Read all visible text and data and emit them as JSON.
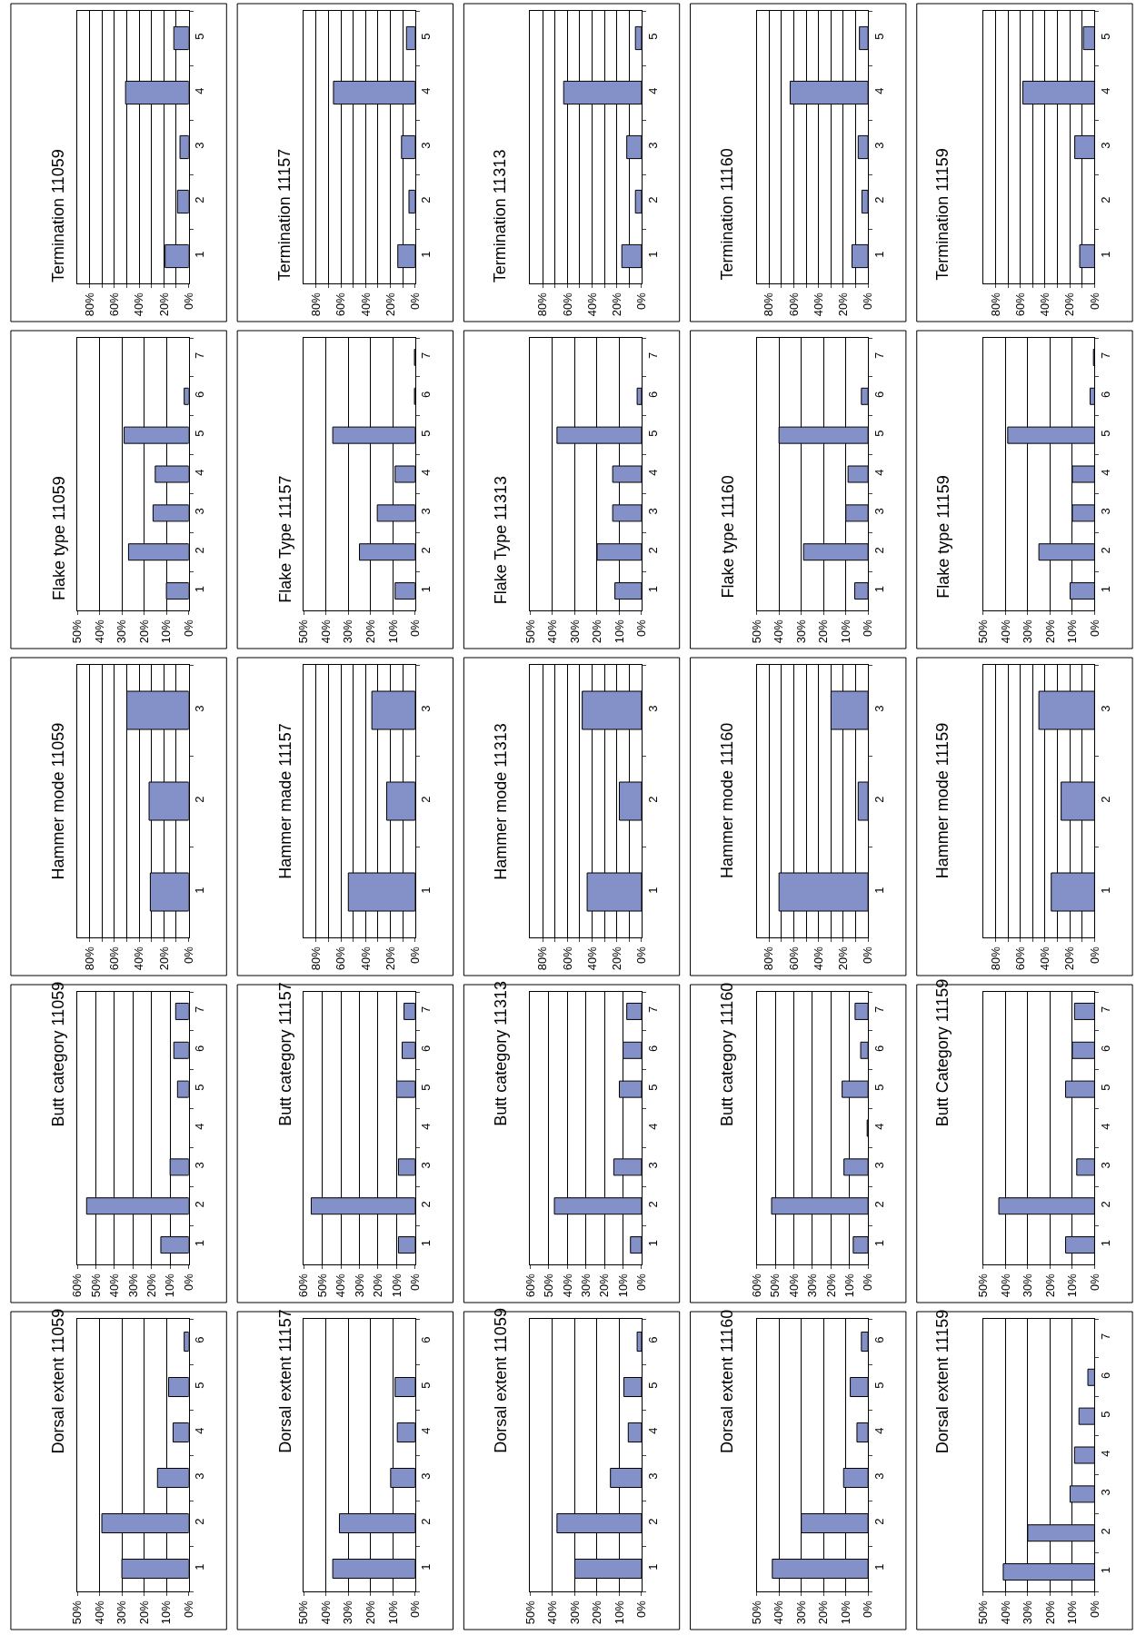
{
  "chart_data": [
    {
      "type": "bar",
      "orientation": "horizontal",
      "title": "Termination 11059",
      "categories": [
        "5",
        "4",
        "3",
        "2",
        "1"
      ],
      "values": [
        12,
        51,
        7,
        9,
        19
      ],
      "color": "#8490c8",
      "xlim": [
        90,
        0
      ],
      "xticks": [
        {
          "value": 0,
          "label": "0%"
        },
        {
          "value": 10,
          "label": null
        },
        {
          "value": 20,
          "label": "20%"
        },
        {
          "value": 30,
          "label": null
        },
        {
          "value": 40,
          "label": "40%"
        },
        {
          "value": 50,
          "label": null
        },
        {
          "value": 60,
          "label": "60%"
        },
        {
          "value": 70,
          "label": null
        },
        {
          "value": 80,
          "label": "80%"
        }
      ],
      "grid": "x"
    },
    {
      "type": "bar",
      "orientation": "horizontal",
      "title": "Termination 11157",
      "categories": [
        "5",
        "4",
        "3",
        "2",
        "1"
      ],
      "values": [
        7,
        66,
        11,
        5,
        14
      ],
      "color": "#8490c8",
      "xlim": [
        90,
        0
      ],
      "xticks": [
        {
          "value": 0,
          "label": "0%"
        },
        {
          "value": 10,
          "label": null
        },
        {
          "value": 20,
          "label": "20%"
        },
        {
          "value": 30,
          "label": null
        },
        {
          "value": 40,
          "label": "40%"
        },
        {
          "value": 50,
          "label": null
        },
        {
          "value": 60,
          "label": "60%"
        },
        {
          "value": 70,
          "label": null
        },
        {
          "value": 80,
          "label": "80%"
        }
      ],
      "grid": "x"
    },
    {
      "type": "bar",
      "orientation": "horizontal",
      "title": "Termination 11313",
      "categories": [
        "5",
        "4",
        "3",
        "2",
        "1"
      ],
      "values": [
        5,
        63,
        12,
        5,
        16
      ],
      "color": "#8490c8",
      "xlim": [
        90,
        0
      ],
      "xticks": [
        {
          "value": 0,
          "label": "0%"
        },
        {
          "value": 10,
          "label": null
        },
        {
          "value": 20,
          "label": "20%"
        },
        {
          "value": 30,
          "label": null
        },
        {
          "value": 40,
          "label": "40%"
        },
        {
          "value": 50,
          "label": null
        },
        {
          "value": 60,
          "label": "60%"
        },
        {
          "value": 70,
          "label": null
        },
        {
          "value": 80,
          "label": "80%"
        }
      ],
      "grid": "x"
    },
    {
      "type": "bar",
      "orientation": "horizontal",
      "title": "Termination 11160",
      "categories": [
        "5",
        "4",
        "3",
        "2",
        "1"
      ],
      "values": [
        7,
        63,
        8,
        5,
        13
      ],
      "color": "#8490c8",
      "xlim": [
        90,
        0
      ],
      "xticks": [
        {
          "value": 0,
          "label": "0%"
        },
        {
          "value": 10,
          "label": null
        },
        {
          "value": 20,
          "label": "20%"
        },
        {
          "value": 30,
          "label": null
        },
        {
          "value": 40,
          "label": "40%"
        },
        {
          "value": 50,
          "label": null
        },
        {
          "value": 60,
          "label": "60%"
        },
        {
          "value": 70,
          "label": null
        },
        {
          "value": 80,
          "label": "80%"
        }
      ],
      "grid": "x"
    },
    {
      "type": "bar",
      "orientation": "horizontal",
      "title": "Termination 11159",
      "categories": [
        "5",
        "4",
        "3",
        "2",
        "1"
      ],
      "values": [
        9,
        58,
        16,
        null,
        12
      ],
      "color": "#8490c8",
      "xlim": [
        90,
        0
      ],
      "xticks": [
        {
          "value": 0,
          "label": "0%"
        },
        {
          "value": 10,
          "label": null
        },
        {
          "value": 20,
          "label": "20%"
        },
        {
          "value": 30,
          "label": null
        },
        {
          "value": 40,
          "label": "40%"
        },
        {
          "value": 50,
          "label": null
        },
        {
          "value": 60,
          "label": "60%"
        },
        {
          "value": 70,
          "label": null
        },
        {
          "value": 80,
          "label": "80%"
        }
      ],
      "grid": "x"
    },
    {
      "type": "bar",
      "orientation": "horizontal",
      "title": "Flake type 11059",
      "categories": [
        "7",
        "6",
        "5",
        "4",
        "3",
        "2",
        "1"
      ],
      "values": [
        0,
        2,
        29,
        15,
        16,
        27,
        10
      ],
      "color": "#8490c8",
      "xlim": [
        50,
        0
      ],
      "xticks": [
        {
          "value": 0,
          "label": "0%"
        },
        {
          "value": 10,
          "label": "10%"
        },
        {
          "value": 20,
          "label": "20%"
        },
        {
          "value": 30,
          "label": "30%"
        },
        {
          "value": 40,
          "label": "40%"
        },
        {
          "value": 50,
          "label": "50%"
        }
      ],
      "grid": "x"
    },
    {
      "type": "bar",
      "orientation": "horizontal",
      "title": "Flake Type 11157",
      "categories": [
        "7",
        "6",
        "5",
        "4",
        "3",
        "2",
        "1"
      ],
      "values": [
        0.3,
        0.3,
        37,
        9,
        17,
        25,
        9
      ],
      "color": "#8490c8",
      "xlim": [
        50,
        0
      ],
      "xticks": [
        {
          "value": 0,
          "label": "0%"
        },
        {
          "value": 10,
          "label": "10%"
        },
        {
          "value": 20,
          "label": "20%"
        },
        {
          "value": 30,
          "label": "30%"
        },
        {
          "value": 40,
          "label": "40%"
        },
        {
          "value": 50,
          "label": "50%"
        }
      ],
      "grid": "x"
    },
    {
      "type": "bar",
      "orientation": "horizontal",
      "title": "Flake Type 11313",
      "categories": [
        "7",
        "6",
        "5",
        "4",
        "3",
        "2",
        "1"
      ],
      "values": [
        0,
        2,
        38,
        13,
        13,
        20,
        12
      ],
      "color": "#8490c8",
      "xlim": [
        50,
        0
      ],
      "xticks": [
        {
          "value": 0,
          "label": "0%"
        },
        {
          "value": 10,
          "label": "10%"
        },
        {
          "value": 20,
          "label": "20%"
        },
        {
          "value": 30,
          "label": "30%"
        },
        {
          "value": 40,
          "label": "40%"
        },
        {
          "value": 50,
          "label": "50%"
        }
      ],
      "grid": "x"
    },
    {
      "type": "bar",
      "orientation": "horizontal",
      "title": "Flake type 11160",
      "categories": [
        "7",
        "6",
        "5",
        "4",
        "3",
        "2",
        "1"
      ],
      "values": [
        0,
        3,
        40,
        9,
        10,
        29,
        6
      ],
      "color": "#8490c8",
      "xlim": [
        50,
        0
      ],
      "xticks": [
        {
          "value": 0,
          "label": "0%"
        },
        {
          "value": 10,
          "label": "10%"
        },
        {
          "value": 20,
          "label": "20%"
        },
        {
          "value": 30,
          "label": "30%"
        },
        {
          "value": 40,
          "label": "40%"
        },
        {
          "value": 50,
          "label": "50%"
        }
      ],
      "grid": "x"
    },
    {
      "type": "bar",
      "orientation": "horizontal",
      "title": "Flake type 11159",
      "categories": [
        "7",
        "6",
        "5",
        "4",
        "3",
        "2",
        "1"
      ],
      "values": [
        0.5,
        2,
        39,
        10,
        10,
        25,
        11
      ],
      "color": "#8490c8",
      "xlim": [
        50,
        0
      ],
      "xticks": [
        {
          "value": 0,
          "label": "0%"
        },
        {
          "value": 10,
          "label": "10%"
        },
        {
          "value": 20,
          "label": "20%"
        },
        {
          "value": 30,
          "label": "30%"
        },
        {
          "value": 40,
          "label": "40%"
        },
        {
          "value": 50,
          "label": "50%"
        }
      ],
      "grid": "x"
    },
    {
      "type": "bar",
      "orientation": "horizontal",
      "title": "Hammer mode 11059",
      "categories": [
        "3",
        "2",
        "1"
      ],
      "values": [
        50,
        32,
        31
      ],
      "color": "#8490c8",
      "xlim": [
        90,
        0
      ],
      "xticks": [
        {
          "value": 0,
          "label": "0%"
        },
        {
          "value": 10,
          "label": null
        },
        {
          "value": 20,
          "label": "20%"
        },
        {
          "value": 30,
          "label": null
        },
        {
          "value": 40,
          "label": "40%"
        },
        {
          "value": 50,
          "label": null
        },
        {
          "value": 60,
          "label": "60%"
        },
        {
          "value": 70,
          "label": null
        },
        {
          "value": 80,
          "label": "80%"
        }
      ],
      "grid": "x"
    },
    {
      "type": "bar",
      "orientation": "horizontal",
      "title": "Hammer made 11157",
      "categories": [
        "3",
        "2",
        "1"
      ],
      "values": [
        35,
        23,
        54
      ],
      "color": "#8490c8",
      "xlim": [
        90,
        0
      ],
      "xticks": [
        {
          "value": 0,
          "label": "0%"
        },
        {
          "value": 10,
          "label": null
        },
        {
          "value": 20,
          "label": "20%"
        },
        {
          "value": 30,
          "label": null
        },
        {
          "value": 40,
          "label": "40%"
        },
        {
          "value": 50,
          "label": null
        },
        {
          "value": 60,
          "label": "60%"
        },
        {
          "value": 70,
          "label": null
        },
        {
          "value": 80,
          "label": "80%"
        }
      ],
      "grid": "x"
    },
    {
      "type": "bar",
      "orientation": "horizontal",
      "title": "Hammer mode 11313",
      "categories": [
        "3",
        "2",
        "1"
      ],
      "values": [
        48,
        18,
        44
      ],
      "color": "#8490c8",
      "xlim": [
        90,
        0
      ],
      "xticks": [
        {
          "value": 0,
          "label": "0%"
        },
        {
          "value": 10,
          "label": null
        },
        {
          "value": 20,
          "label": "20%"
        },
        {
          "value": 30,
          "label": null
        },
        {
          "value": 40,
          "label": "40%"
        },
        {
          "value": 50,
          "label": null
        },
        {
          "value": 60,
          "label": "60%"
        },
        {
          "value": 70,
          "label": null
        },
        {
          "value": 80,
          "label": "80%"
        }
      ],
      "grid": "x"
    },
    {
      "type": "bar",
      "orientation": "horizontal",
      "title": "Hammer mode 11160",
      "categories": [
        "3",
        "2",
        "1"
      ],
      "values": [
        30,
        8,
        72
      ],
      "color": "#8490c8",
      "xlim": [
        90,
        0
      ],
      "xticks": [
        {
          "value": 0,
          "label": "0%"
        },
        {
          "value": 10,
          "label": null
        },
        {
          "value": 20,
          "label": "20%"
        },
        {
          "value": 30,
          "label": null
        },
        {
          "value": 40,
          "label": "40%"
        },
        {
          "value": 50,
          "label": null
        },
        {
          "value": 60,
          "label": "60%"
        },
        {
          "value": 70,
          "label": null
        },
        {
          "value": 80,
          "label": "80%"
        }
      ],
      "grid": "x"
    },
    {
      "type": "bar",
      "orientation": "horizontal",
      "title": "Hammer mode 11159",
      "categories": [
        "3",
        "2",
        "1"
      ],
      "values": [
        45,
        27,
        35
      ],
      "color": "#8490c8",
      "xlim": [
        90,
        0
      ],
      "xticks": [
        {
          "value": 0,
          "label": "0%"
        },
        {
          "value": 10,
          "label": null
        },
        {
          "value": 20,
          "label": "20%"
        },
        {
          "value": 30,
          "label": null
        },
        {
          "value": 40,
          "label": "40%"
        },
        {
          "value": 50,
          "label": null
        },
        {
          "value": 60,
          "label": "60%"
        },
        {
          "value": 70,
          "label": null
        },
        {
          "value": 80,
          "label": "80%"
        }
      ],
      "grid": "x"
    },
    {
      "type": "bar",
      "orientation": "horizontal",
      "title": "Butt category 11059",
      "categories": [
        "7",
        "6",
        "5",
        "4",
        "3",
        "2",
        "1"
      ],
      "values": [
        7,
        8,
        6,
        0,
        10,
        55,
        15
      ],
      "color": "#8490c8",
      "xlim": [
        60,
        0
      ],
      "xticks": [
        {
          "value": 0,
          "label": "0%"
        },
        {
          "value": 10,
          "label": "10%"
        },
        {
          "value": 20,
          "label": "20%"
        },
        {
          "value": 30,
          "label": "30%"
        },
        {
          "value": 40,
          "label": "40%"
        },
        {
          "value": 50,
          "label": "50%"
        },
        {
          "value": 60,
          "label": "60%"
        }
      ],
      "grid": "x"
    },
    {
      "type": "bar",
      "orientation": "horizontal",
      "title": "Butt category 11157",
      "categories": [
        "7",
        "6",
        "5",
        "4",
        "3",
        "2",
        "1"
      ],
      "values": [
        6,
        7,
        10,
        null,
        9,
        56,
        9
      ],
      "color": "#8490c8",
      "xlim": [
        60,
        0
      ],
      "xticks": [
        {
          "value": 0,
          "label": "0%"
        },
        {
          "value": 10,
          "label": "10%"
        },
        {
          "value": 20,
          "label": "20%"
        },
        {
          "value": 30,
          "label": "30%"
        },
        {
          "value": 40,
          "label": "40%"
        },
        {
          "value": 50,
          "label": "50%"
        },
        {
          "value": 60,
          "label": "60%"
        }
      ],
      "grid": "x"
    },
    {
      "type": "bar",
      "orientation": "horizontal",
      "title": "Butt category 11313",
      "categories": [
        "7",
        "6",
        "5",
        "4",
        "3",
        "2",
        "1"
      ],
      "values": [
        8,
        10,
        12,
        null,
        15,
        47,
        6
      ],
      "color": "#8490c8",
      "xlim": [
        60,
        0
      ],
      "xticks": [
        {
          "value": 0,
          "label": "0%"
        },
        {
          "value": 10,
          "label": "10%"
        },
        {
          "value": 20,
          "label": "20%"
        },
        {
          "value": 30,
          "label": "30%"
        },
        {
          "value": 40,
          "label": "40%"
        },
        {
          "value": 50,
          "label": "50%"
        },
        {
          "value": 60,
          "label": "60%"
        }
      ],
      "grid": "x"
    },
    {
      "type": "bar",
      "orientation": "horizontal",
      "title": "Butt category 11160",
      "categories": [
        "7",
        "6",
        "5",
        "4",
        "3",
        "2",
        "1"
      ],
      "values": [
        7,
        4,
        14,
        0.5,
        13,
        52,
        8
      ],
      "color": "#8490c8",
      "xlim": [
        60,
        0
      ],
      "xticks": [
        {
          "value": 0,
          "label": "0%"
        },
        {
          "value": 10,
          "label": "10%"
        },
        {
          "value": 20,
          "label": "20%"
        },
        {
          "value": 30,
          "label": "30%"
        },
        {
          "value": 40,
          "label": "40%"
        },
        {
          "value": 50,
          "label": "50%"
        },
        {
          "value": 60,
          "label": "60%"
        }
      ],
      "grid": "x"
    },
    {
      "type": "bar",
      "orientation": "horizontal",
      "title": "Butt Category 11159",
      "categories": [
        "7",
        "6",
        "5",
        "4",
        "3",
        "2",
        "1"
      ],
      "values": [
        9,
        10,
        13,
        0,
        8,
        43,
        13
      ],
      "color": "#8490c8",
      "xlim": [
        50,
        0
      ],
      "xticks": [
        {
          "value": 0,
          "label": "0%"
        },
        {
          "value": 10,
          "label": "10%"
        },
        {
          "value": 20,
          "label": "20%"
        },
        {
          "value": 30,
          "label": "30%"
        },
        {
          "value": 40,
          "label": "40%"
        },
        {
          "value": 50,
          "label": "50%"
        }
      ],
      "grid": "x"
    },
    {
      "type": "bar",
      "orientation": "horizontal",
      "title": "Dorsal extent 11059",
      "categories": [
        "6",
        "5",
        "4",
        "3",
        "2",
        "1"
      ],
      "values": [
        2,
        9,
        7,
        14,
        39,
        30
      ],
      "color": "#8490c8",
      "xlim": [
        50,
        0
      ],
      "xticks": [
        {
          "value": 0,
          "label": "0%"
        },
        {
          "value": 10,
          "label": "10%"
        },
        {
          "value": 20,
          "label": "20%"
        },
        {
          "value": 30,
          "label": "30%"
        },
        {
          "value": 40,
          "label": "40%"
        },
        {
          "value": 50,
          "label": "50%"
        }
      ],
      "grid": "x"
    },
    {
      "type": "bar",
      "orientation": "horizontal",
      "title": "Dorsal extent 11157",
      "categories": [
        "6",
        "5",
        "4",
        "3",
        "2",
        "1"
      ],
      "values": [
        null,
        9,
        8,
        11,
        34,
        37
      ],
      "color": "#8490c8",
      "xlim": [
        50,
        0
      ],
      "xticks": [
        {
          "value": 0,
          "label": "0%"
        },
        {
          "value": 10,
          "label": "10%"
        },
        {
          "value": 20,
          "label": "20%"
        },
        {
          "value": 30,
          "label": "30%"
        },
        {
          "value": 40,
          "label": "40%"
        },
        {
          "value": 50,
          "label": "50%"
        }
      ],
      "grid": "x"
    },
    {
      "type": "bar",
      "orientation": "horizontal",
      "title": "Dorsal extent 11059",
      "categories": [
        "6",
        "5",
        "4",
        "3",
        "2",
        "1"
      ],
      "values": [
        2,
        8,
        6,
        14,
        38,
        30
      ],
      "color": "#8490c8",
      "xlim": [
        50,
        0
      ],
      "xticks": [
        {
          "value": 0,
          "label": "0%"
        },
        {
          "value": 10,
          "label": "10%"
        },
        {
          "value": 20,
          "label": "20%"
        },
        {
          "value": 30,
          "label": "30%"
        },
        {
          "value": 40,
          "label": "40%"
        },
        {
          "value": 50,
          "label": "50%"
        }
      ],
      "grid": "x"
    },
    {
      "type": "bar",
      "orientation": "horizontal",
      "title": "Dorsal extent 11160",
      "categories": [
        "6",
        "5",
        "4",
        "3",
        "2",
        "1"
      ],
      "values": [
        3,
        8,
        5,
        11,
        30,
        43
      ],
      "color": "#8490c8",
      "xlim": [
        50,
        0
      ],
      "xticks": [
        {
          "value": 0,
          "label": "0%"
        },
        {
          "value": 10,
          "label": "10%"
        },
        {
          "value": 20,
          "label": "20%"
        },
        {
          "value": 30,
          "label": "30%"
        },
        {
          "value": 40,
          "label": "40%"
        },
        {
          "value": 50,
          "label": "50%"
        }
      ],
      "grid": "x"
    },
    {
      "type": "bar",
      "orientation": "horizontal",
      "title": "Dorsal extent 11159",
      "categories": [
        "7",
        "6",
        "5",
        "4",
        "3",
        "2",
        "1"
      ],
      "values": [
        0,
        3,
        7,
        9,
        11,
        30,
        41
      ],
      "color": "#8490c8",
      "xlim": [
        50,
        0
      ],
      "xticks": [
        {
          "value": 0,
          "label": "0%"
        },
        {
          "value": 10,
          "label": "10%"
        },
        {
          "value": 20,
          "label": "20%"
        },
        {
          "value": 30,
          "label": "30%"
        },
        {
          "value": 40,
          "label": "40%"
        },
        {
          "value": 50,
          "label": "50%"
        }
      ],
      "grid": "x"
    }
  ]
}
